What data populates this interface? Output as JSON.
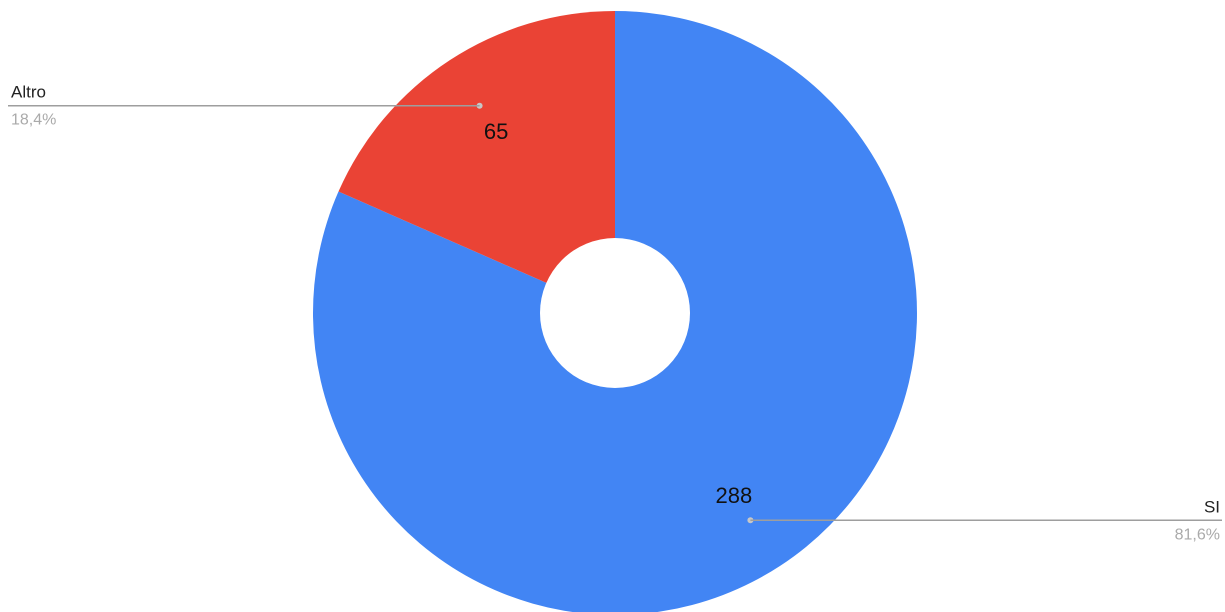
{
  "chart_data": {
    "type": "pie",
    "donut": true,
    "start_angle_deg": 0,
    "direction": "clockwise",
    "slices": [
      {
        "label": "SI",
        "value": 288,
        "percent": "81,6%",
        "color": "#4285f4",
        "label_side": "right"
      },
      {
        "label": "Altro",
        "value": 65,
        "percent": "18,4%",
        "color": "#ea4335",
        "label_side": "left"
      }
    ],
    "legend": "callouts with leader lines",
    "leader_color": "#9e9e9e"
  }
}
